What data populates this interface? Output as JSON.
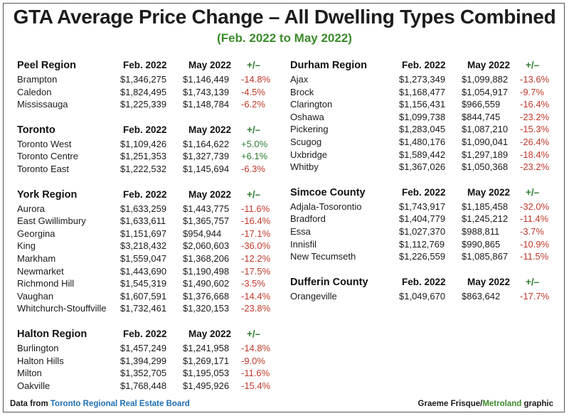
{
  "title": "GTA Average Price Change – All Dwelling Types Combined",
  "subtitle": "(Feb. 2022 to May 2022)",
  "footer": {
    "source_prefix": "Data from ",
    "source_name": "Toronto Regional Real Estate Board",
    "credit_name": "Graeme Frisque/",
    "credit_brand": "Metroland",
    "credit_suffix": " graphic"
  },
  "chart_data": {
    "type": "table",
    "columns": [
      "Feb. 2022",
      "May 2022",
      "+/–"
    ],
    "regions": [
      {
        "name": "Peel Region",
        "column": "left",
        "rows": [
          {
            "area": "Brampton",
            "feb": "$1,346,275",
            "may": "$1,146,449",
            "change": "-14.8%",
            "sign": "neg"
          },
          {
            "area": "Caledon",
            "feb": "$1,824,495",
            "may": "$1,743,139",
            "change": "-4.5%",
            "sign": "neg"
          },
          {
            "area": "Mississauga",
            "feb": "$1,225,339",
            "may": "$1,148,784",
            "change": "-6.2%",
            "sign": "neg"
          }
        ]
      },
      {
        "name": "Toronto",
        "column": "left",
        "rows": [
          {
            "area": "Toronto West",
            "feb": "$1,109,426",
            "may": "$1,164,622",
            "change": "+5.0%",
            "sign": "pos"
          },
          {
            "area": "Toronto Centre",
            "feb": "$1,251,353",
            "may": "$1,327,739",
            "change": "+6.1%",
            "sign": "pos"
          },
          {
            "area": "Toronto East",
            "feb": "$1,222,532",
            "may": "$1,145,694",
            "change": "-6.3%",
            "sign": "neg"
          }
        ]
      },
      {
        "name": "York Region",
        "column": "left",
        "rows": [
          {
            "area": "Aurora",
            "feb": "$1,633,259",
            "may": "$1,443,775",
            "change": "-11.6%",
            "sign": "neg"
          },
          {
            "area": "East Gwillimbury",
            "feb": "$1,633,611",
            "may": "$1,365,757",
            "change": "-16.4%",
            "sign": "neg"
          },
          {
            "area": "Georgina",
            "feb": "$1,151,697",
            "may": "$954,944",
            "change": "-17.1%",
            "sign": "neg"
          },
          {
            "area": "King",
            "feb": "$3,218,432",
            "may": "$2,060,603",
            "change": "-36.0%",
            "sign": "neg"
          },
          {
            "area": "Markham",
            "feb": "$1,559,047",
            "may": "$1,368,206",
            "change": "-12.2%",
            "sign": "neg"
          },
          {
            "area": "Newmarket",
            "feb": "$1,443,690",
            "may": "$1,190,498",
            "change": "-17.5%",
            "sign": "neg"
          },
          {
            "area": "Richmond Hill",
            "feb": "$1,545,319",
            "may": "$1,490,602",
            "change": "-3.5%",
            "sign": "neg"
          },
          {
            "area": "Vaughan",
            "feb": "$1,607,591",
            "may": "$1,376,668",
            "change": "-14.4%",
            "sign": "neg"
          },
          {
            "area": "Whitchurch-Stouffville",
            "feb": "$1,732,461",
            "may": "$1,320,153",
            "change": "-23.8%",
            "sign": "neg"
          }
        ]
      },
      {
        "name": "Halton Region",
        "column": "left",
        "rows": [
          {
            "area": "Burlington",
            "feb": "$1,457,249",
            "may": "$1,241,958",
            "change": "-14.8%",
            "sign": "neg"
          },
          {
            "area": "Halton Hills",
            "feb": "$1,394,299",
            "may": "$1,269,171",
            "change": "-9.0%",
            "sign": "neg"
          },
          {
            "area": "Milton",
            "feb": "$1,352,705",
            "may": "$1,195,053",
            "change": "-11.6%",
            "sign": "neg"
          },
          {
            "area": "Oakville",
            "feb": "$1,768,448",
            "may": "$1,495,926",
            "change": "-15.4%",
            "sign": "neg"
          }
        ]
      },
      {
        "name": "Durham Region",
        "column": "right",
        "rows": [
          {
            "area": "Ajax",
            "feb": "$1,273,349",
            "may": "$1,099,882",
            "change": "-13.6%",
            "sign": "neg"
          },
          {
            "area": "Brock",
            "feb": "$1,168,477",
            "may": "$1,054,917",
            "change": "-9.7%",
            "sign": "neg"
          },
          {
            "area": "Clarington",
            "feb": "$1,156,431",
            "may": "$966,559",
            "change": "-16.4%",
            "sign": "neg"
          },
          {
            "area": "Oshawa",
            "feb": "$1,099,738",
            "may": "$844,745",
            "change": "-23.2%",
            "sign": "neg"
          },
          {
            "area": "Pickering",
            "feb": "$1,283,045",
            "may": "$1,087,210",
            "change": "-15.3%",
            "sign": "neg"
          },
          {
            "area": "Scugog",
            "feb": "$1,480,176",
            "may": "$1,090,041",
            "change": "-26.4%",
            "sign": "neg"
          },
          {
            "area": "Uxbridge",
            "feb": "$1,589,442",
            "may": "$1,297,189",
            "change": "-18.4%",
            "sign": "neg"
          },
          {
            "area": "Whitby",
            "feb": "$1,367,026",
            "may": "$1,050,368",
            "change": "-23.2%",
            "sign": "neg"
          }
        ]
      },
      {
        "name": "Simcoe County",
        "column": "right",
        "rows": [
          {
            "area": "Adjala-Tosorontio",
            "feb": "$1,743,917",
            "may": "$1,185,458",
            "change": "-32.0%",
            "sign": "neg"
          },
          {
            "area": "Bradford",
            "feb": "$1,404,779",
            "may": "$1,245,212",
            "change": "-11.4%",
            "sign": "neg"
          },
          {
            "area": "Essa",
            "feb": "$1,027,370",
            "may": "$988,811",
            "change": "-3.7%",
            "sign": "neg"
          },
          {
            "area": "Innisfil",
            "feb": "$1,112,769",
            "may": "$990,865",
            "change": "-10.9%",
            "sign": "neg"
          },
          {
            "area": "New Tecumseth",
            "feb": "$1,226,559",
            "may": "$1,085,867",
            "change": "-11.5%",
            "sign": "neg"
          }
        ]
      },
      {
        "name": "Dufferin County",
        "column": "right",
        "rows": [
          {
            "area": "Orangeville",
            "feb": "$1,049,670",
            "may": "$863,642",
            "change": "-17.7%",
            "sign": "neg"
          }
        ]
      }
    ]
  }
}
